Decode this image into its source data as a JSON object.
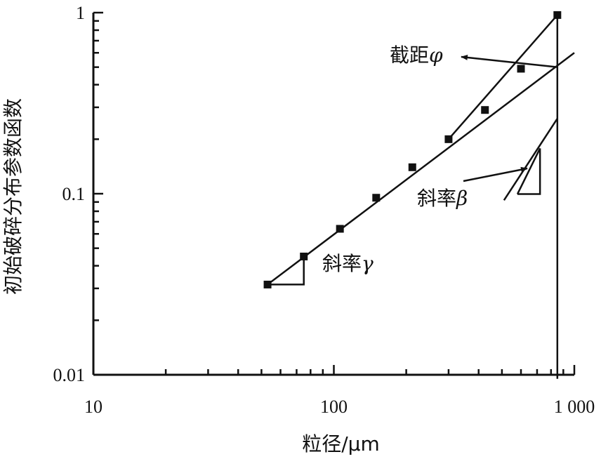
{
  "chart_data": {
    "type": "scatter",
    "x_scale": "log",
    "y_scale": "log",
    "xlim": [
      10,
      1000
    ],
    "ylim": [
      0.01,
      1
    ],
    "xlabel": "粒径/μm",
    "ylabel": "初始破碎分布参数函数",
    "x_ticks": [
      {
        "value": 10,
        "label": "10"
      },
      {
        "value": 100,
        "label": "100"
      },
      {
        "value": 1000,
        "label": "1 000"
      }
    ],
    "y_ticks": [
      {
        "value": 0.01,
        "label": "0.01"
      },
      {
        "value": 0.1,
        "label": "0.1"
      },
      {
        "value": 1,
        "label": "1"
      }
    ],
    "grid": false,
    "series": [
      {
        "points": [
          {
            "x": 53,
            "y": 0.0315
          },
          {
            "x": 75,
            "y": 0.045
          },
          {
            "x": 106,
            "y": 0.064
          },
          {
            "x": 150,
            "y": 0.095
          },
          {
            "x": 212,
            "y": 0.14
          },
          {
            "x": 300,
            "y": 0.2
          },
          {
            "x": 425,
            "y": 0.29
          },
          {
            "x": 600,
            "y": 0.49
          },
          {
            "x": 850,
            "y": 0.97
          }
        ]
      }
    ],
    "fit_lines": [
      {
        "from": {
          "x": 53,
          "y": 0.0315
        },
        "to": {
          "x": 1000,
          "y": 0.6
        }
      },
      {
        "from": {
          "x": 300,
          "y": 0.2
        },
        "to": {
          "x": 850,
          "y": 0.97
        }
      },
      {
        "from": {
          "x": 510,
          "y": 0.092
        },
        "to": {
          "x": 850,
          "y": 0.26
        }
      }
    ],
    "vertical_line": {
      "x": 850,
      "y_from": 0.0095,
      "y_to": 1
    },
    "annotations": [
      {
        "id": "intercept",
        "label": "截距",
        "symbol": "φ"
      },
      {
        "id": "slope-beta",
        "label": "斜率",
        "symbol": "β"
      },
      {
        "id": "slope-gamma",
        "label": "斜率",
        "symbol": "γ"
      }
    ]
  }
}
